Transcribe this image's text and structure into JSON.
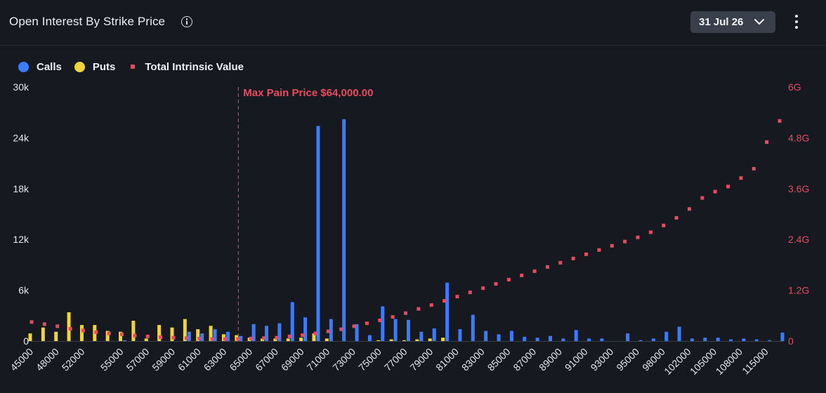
{
  "header": {
    "title": "Open Interest By Strike Price",
    "date_selected": "31 Jul 26"
  },
  "colors": {
    "calls": "#3b7bff",
    "puts": "#f1d33b",
    "intrinsic": "#e84a5f",
    "max_pain_line": "#e84a5f"
  },
  "legend": {
    "calls": "Calls",
    "puts": "Puts",
    "intrinsic": "Total Intrinsic Value"
  },
  "chart_data": {
    "type": "bar",
    "title": "Open Interest By Strike Price",
    "legend_position": "top-left",
    "grid": false,
    "categories": [
      "45000",
      "46000",
      "48000",
      "50000",
      "52000",
      "53000",
      "54000",
      "55000",
      "56000",
      "57000",
      "58000",
      "59000",
      "60000",
      "61000",
      "62000",
      "63000",
      "64000",
      "65000",
      "66000",
      "67000",
      "68000",
      "69000",
      "70000",
      "71000",
      "72000",
      "73000",
      "74000",
      "75000",
      "76000",
      "77000",
      "78000",
      "79000",
      "80000",
      "81000",
      "82000",
      "83000",
      "84000",
      "85000",
      "86000",
      "87000",
      "88000",
      "89000",
      "90000",
      "91000",
      "92000",
      "93000",
      "94000",
      "95000",
      "96000",
      "98000",
      "100000",
      "102000",
      "104000",
      "105000",
      "106000",
      "108000",
      "110000",
      "115000",
      "120000"
    ],
    "x_tick_labels": [
      "45000",
      "48000",
      "52000",
      "55000",
      "57000",
      "59000",
      "61000",
      "63000",
      "65000",
      "67000",
      "69000",
      "71000",
      "73000",
      "75000",
      "77000",
      "79000",
      "81000",
      "83000",
      "85000",
      "87000",
      "89000",
      "91000",
      "93000",
      "95000",
      "98000",
      "102000",
      "105000",
      "108000",
      "115000"
    ],
    "y_axis_left": {
      "label": "",
      "ylim": [
        0,
        30000
      ],
      "ticks": [
        "0",
        "6k",
        "12k",
        "18k",
        "24k",
        "30k"
      ]
    },
    "y_axis_right": {
      "label": "",
      "ylim": [
        0,
        6
      ],
      "unit": "G",
      "ticks": [
        "0",
        "1.2G",
        "2.4G",
        "3.6G",
        "4.8G",
        "6G"
      ]
    },
    "series": [
      {
        "name": "Calls",
        "kind": "bar",
        "axis": "left",
        "values": [
          0,
          0,
          0,
          0,
          0,
          0,
          0,
          100,
          0,
          0,
          0,
          0,
          1100,
          900,
          1400,
          1100,
          600,
          2000,
          1800,
          2100,
          4600,
          2800,
          25400,
          2600,
          26200,
          2000,
          700,
          4100,
          2600,
          2500,
          1100,
          1500,
          6900,
          1400,
          3100,
          1200,
          800,
          1200,
          500,
          400,
          600,
          300,
          1300,
          300,
          300,
          0,
          900,
          100,
          300,
          1100,
          1700,
          300,
          400,
          400,
          200,
          300,
          200,
          100,
          1000
        ]
      },
      {
        "name": "Puts",
        "kind": "bar",
        "axis": "left",
        "values": [
          900,
          1600,
          1100,
          3400,
          1900,
          1900,
          1200,
          1100,
          2400,
          300,
          1900,
          1600,
          2600,
          1400,
          1800,
          800,
          700,
          400,
          300,
          300,
          300,
          400,
          900,
          300,
          0,
          0,
          0,
          100,
          200,
          100,
          200,
          300,
          400,
          0,
          0,
          0,
          0,
          0,
          0,
          0,
          0,
          0,
          0,
          0,
          0,
          0,
          0,
          0,
          0,
          0,
          0,
          0,
          0,
          0,
          0,
          0,
          0,
          0,
          0
        ]
      },
      {
        "name": "Total Intrinsic Value",
        "kind": "scatter",
        "axis": "right",
        "values": [
          0.45,
          0.4,
          0.35,
          0.29,
          0.25,
          0.21,
          0.18,
          0.16,
          0.13,
          0.11,
          0.09,
          0.08,
          0.07,
          0.06,
          0.05,
          0.05,
          0.05,
          0.06,
          0.07,
          0.08,
          0.11,
          0.14,
          0.18,
          0.23,
          0.28,
          0.35,
          0.42,
          0.49,
          0.57,
          0.66,
          0.76,
          0.85,
          0.95,
          1.05,
          1.15,
          1.25,
          1.35,
          1.45,
          1.55,
          1.65,
          1.75,
          1.85,
          1.95,
          2.05,
          2.15,
          2.25,
          2.35,
          2.45,
          2.57,
          2.73,
          2.91,
          3.12,
          3.38,
          3.53,
          3.65,
          3.85,
          4.07,
          4.7,
          5.2
        ]
      }
    ],
    "annotations": [
      {
        "text": "Max Pain Price $64,000.00",
        "category": "64000"
      }
    ]
  }
}
